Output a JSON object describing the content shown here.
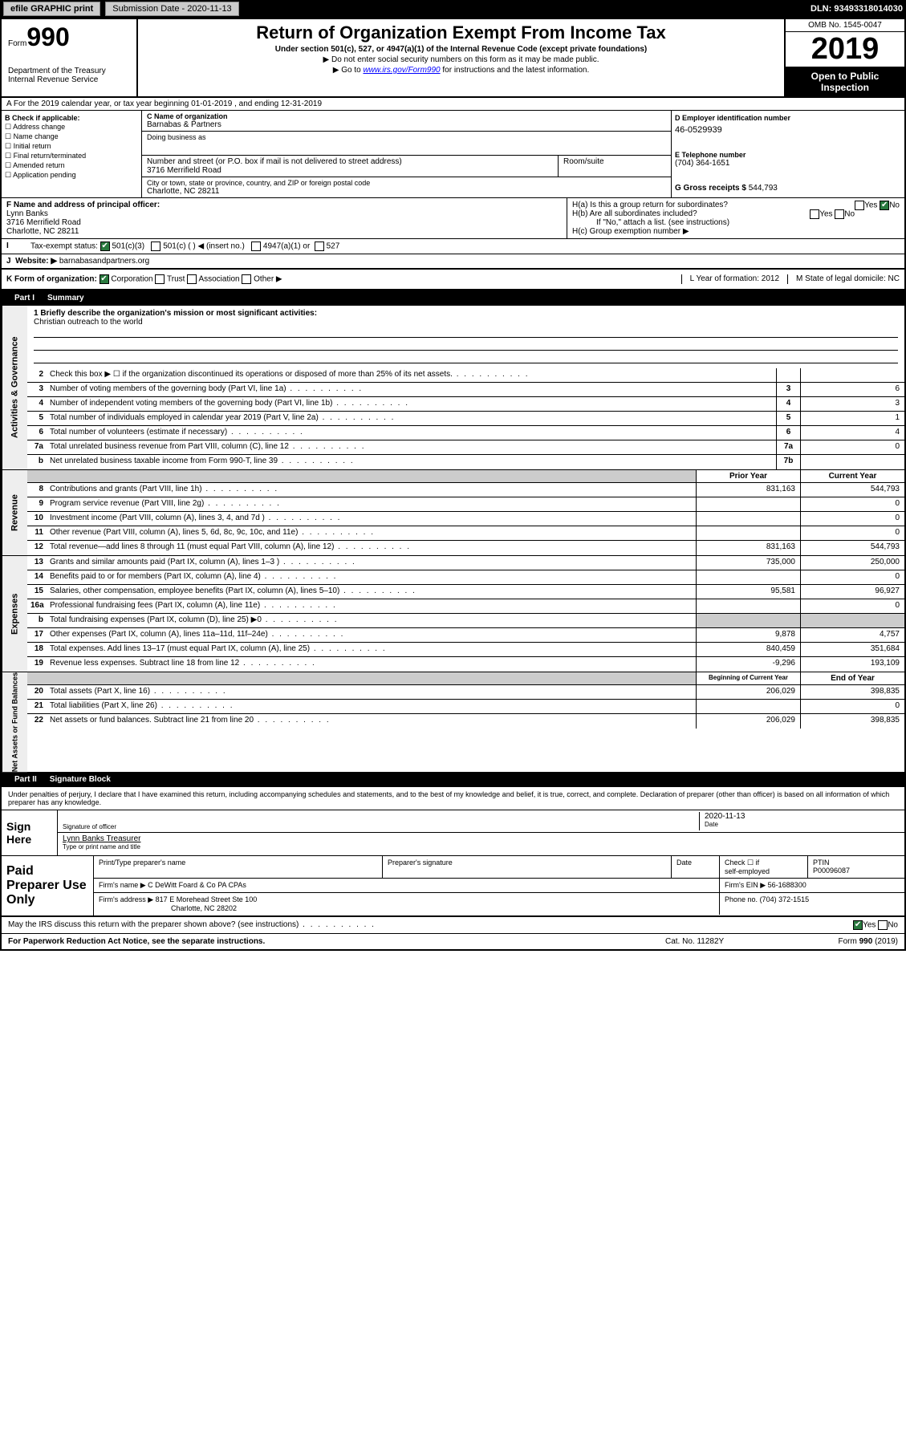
{
  "topbar": {
    "efile": "efile GRAPHIC print",
    "submission": "Submission Date - 2020-11-13",
    "dln": "DLN: 93493318014030"
  },
  "header": {
    "form_prefix": "Form",
    "form_number": "990",
    "title": "Return of Organization Exempt From Income Tax",
    "subtitle": "Under section 501(c), 527, or 4947(a)(1) of the Internal Revenue Code (except private foundations)",
    "warn": "▶ Do not enter social security numbers on this form as it may be made public.",
    "goto_pre": "▶ Go to ",
    "goto_link": "www.irs.gov/Form990",
    "goto_post": " for instructions and the latest information.",
    "dept": "Department of the Treasury\nInternal Revenue Service",
    "omb": "OMB No. 1545-0047",
    "year": "2019",
    "open": "Open to Public Inspection"
  },
  "rowA": "A For the 2019 calendar year, or tax year beginning 01-01-2019   , and ending 12-31-2019",
  "colB": {
    "title": "B Check if applicable:",
    "opts": [
      "Address change",
      "Name change",
      "Initial return",
      "Final return/terminated",
      "Amended return",
      "Application pending"
    ]
  },
  "colC": {
    "name_label": "C Name of organization",
    "name": "Barnabas & Partners",
    "dba_label": "Doing business as",
    "street_label": "Number and street (or P.O. box if mail is not delivered to street address)",
    "room_label": "Room/suite",
    "street": "3716 Merrifield Road",
    "city_label": "City or town, state or province, country, and ZIP or foreign postal code",
    "city": "Charlotte, NC  28211"
  },
  "colD": {
    "ein_label": "D Employer identification number",
    "ein": "46-0529939",
    "tel_label": "E Telephone number",
    "tel": "(704) 364-1651",
    "gross_label": "G Gross receipts $ ",
    "gross": "544,793"
  },
  "rowF": {
    "label": "F  Name and address of principal officer:",
    "name": "Lynn Banks",
    "addr1": "3716 Merrifield Road",
    "addr2": "Charlotte, NC  28211"
  },
  "rowH": {
    "ha": "H(a)  Is this a group return for subordinates?",
    "hb": "H(b)  Are all subordinates included?",
    "hb_note": "If \"No,\" attach a list. (see instructions)",
    "hc": "H(c)  Group exemption number ▶",
    "yes": "Yes",
    "no": "No"
  },
  "rowI": {
    "label": "Tax-exempt status:",
    "c3": "501(c)(3)",
    "c": "501(c) (  ) ◀ (insert no.)",
    "a1": "4947(a)(1) or",
    "s527": "527"
  },
  "rowJ": {
    "label": "Website: ▶ ",
    "val": "barnabasandpartners.org"
  },
  "rowK": {
    "label": "K Form of organization:",
    "corp": "Corporation",
    "trust": "Trust",
    "assoc": "Association",
    "other": "Other ▶",
    "l": "L Year of formation: 2012",
    "m": "M State of legal domicile: NC"
  },
  "part1": {
    "num": "Part I",
    "title": "Summary"
  },
  "mission": {
    "q": "1  Briefly describe the organization's mission or most significant activities:",
    "a": "Christian outreach to the world"
  },
  "lines_gov": [
    {
      "n": "2",
      "d": "Check this box ▶ ☐  if the organization discontinued its operations or disposed of more than 25% of its net assets.",
      "box": "",
      "v": ""
    },
    {
      "n": "3",
      "d": "Number of voting members of the governing body (Part VI, line 1a)",
      "box": "3",
      "v": "6"
    },
    {
      "n": "4",
      "d": "Number of independent voting members of the governing body (Part VI, line 1b)",
      "box": "4",
      "v": "3"
    },
    {
      "n": "5",
      "d": "Total number of individuals employed in calendar year 2019 (Part V, line 2a)",
      "box": "5",
      "v": "1"
    },
    {
      "n": "6",
      "d": "Total number of volunteers (estimate if necessary)",
      "box": "6",
      "v": "4"
    },
    {
      "n": "7a",
      "d": "Total unrelated business revenue from Part VIII, column (C), line 12",
      "box": "7a",
      "v": "0"
    },
    {
      "n": "b",
      "d": "Net unrelated business taxable income from Form 990-T, line 39",
      "box": "7b",
      "v": ""
    }
  ],
  "col_headers": {
    "prior": "Prior Year",
    "current": "Current Year",
    "boy": "Beginning of Current Year",
    "eoy": "End of Year"
  },
  "lines_rev": [
    {
      "n": "8",
      "d": "Contributions and grants (Part VIII, line 1h)",
      "p": "831,163",
      "c": "544,793"
    },
    {
      "n": "9",
      "d": "Program service revenue (Part VIII, line 2g)",
      "p": "",
      "c": "0"
    },
    {
      "n": "10",
      "d": "Investment income (Part VIII, column (A), lines 3, 4, and 7d )",
      "p": "",
      "c": "0"
    },
    {
      "n": "11",
      "d": "Other revenue (Part VIII, column (A), lines 5, 6d, 8c, 9c, 10c, and 11e)",
      "p": "",
      "c": "0"
    },
    {
      "n": "12",
      "d": "Total revenue—add lines 8 through 11 (must equal Part VIII, column (A), line 12)",
      "p": "831,163",
      "c": "544,793"
    }
  ],
  "lines_exp": [
    {
      "n": "13",
      "d": "Grants and similar amounts paid (Part IX, column (A), lines 1–3 )",
      "p": "735,000",
      "c": "250,000"
    },
    {
      "n": "14",
      "d": "Benefits paid to or for members (Part IX, column (A), line 4)",
      "p": "",
      "c": "0"
    },
    {
      "n": "15",
      "d": "Salaries, other compensation, employee benefits (Part IX, column (A), lines 5–10)",
      "p": "95,581",
      "c": "96,927"
    },
    {
      "n": "16a",
      "d": "Professional fundraising fees (Part IX, column (A), line 11e)",
      "p": "",
      "c": "0"
    },
    {
      "n": "b",
      "d": "Total fundraising expenses (Part IX, column (D), line 25) ▶0",
      "p": "shaded",
      "c": "shaded"
    },
    {
      "n": "17",
      "d": "Other expenses (Part IX, column (A), lines 11a–11d, 11f–24e)",
      "p": "9,878",
      "c": "4,757"
    },
    {
      "n": "18",
      "d": "Total expenses. Add lines 13–17 (must equal Part IX, column (A), line 25)",
      "p": "840,459",
      "c": "351,684"
    },
    {
      "n": "19",
      "d": "Revenue less expenses. Subtract line 18 from line 12",
      "p": "-9,296",
      "c": "193,109"
    }
  ],
  "lines_net": [
    {
      "n": "20",
      "d": "Total assets (Part X, line 16)",
      "p": "206,029",
      "c": "398,835"
    },
    {
      "n": "21",
      "d": "Total liabilities (Part X, line 26)",
      "p": "",
      "c": "0"
    },
    {
      "n": "22",
      "d": "Net assets or fund balances. Subtract line 21 from line 20",
      "p": "206,029",
      "c": "398,835"
    }
  ],
  "vtabs": {
    "gov": "Activities & Governance",
    "rev": "Revenue",
    "exp": "Expenses",
    "net": "Net Assets or Fund Balances"
  },
  "part2": {
    "num": "Part II",
    "title": "Signature Block"
  },
  "perjury": "Under penalties of perjury, I declare that I have examined this return, including accompanying schedules and statements, and to the best of my knowledge and belief, it is true, correct, and complete. Declaration of preparer (other than officer) is based on all information of which preparer has any knowledge.",
  "sign": {
    "label": "Sign Here",
    "sig_officer": "Signature of officer",
    "date": "Date",
    "date_val": "2020-11-13",
    "name": "Lynn Banks  Treasurer",
    "name_label": "Type or print name and title"
  },
  "paid": {
    "label": "Paid Preparer Use Only",
    "h1": "Print/Type preparer's name",
    "h2": "Preparer's signature",
    "h3": "Date",
    "h4_a": "Check ☐ if",
    "h4_b": "self-employed",
    "h5": "PTIN",
    "ptin": "P00096087",
    "firm_name_l": "Firm's name    ▶",
    "firm_name": "C DeWitt Foard & Co PA CPAs",
    "firm_ein_l": "Firm's EIN ▶",
    "firm_ein": "56-1688300",
    "firm_addr_l": "Firm's address ▶",
    "firm_addr1": "817 E Morehead Street Ste 100",
    "firm_addr2": "Charlotte, NC  28202",
    "phone_l": "Phone no.",
    "phone": "(704) 372-1515"
  },
  "footer": {
    "discuss": "May the IRS discuss this return with the preparer shown above? (see instructions)",
    "yes": "Yes",
    "no": "No",
    "paperwork": "For Paperwork Reduction Act Notice, see the separate instructions.",
    "cat": "Cat. No. 11282Y",
    "form": "Form 990 (2019)"
  }
}
